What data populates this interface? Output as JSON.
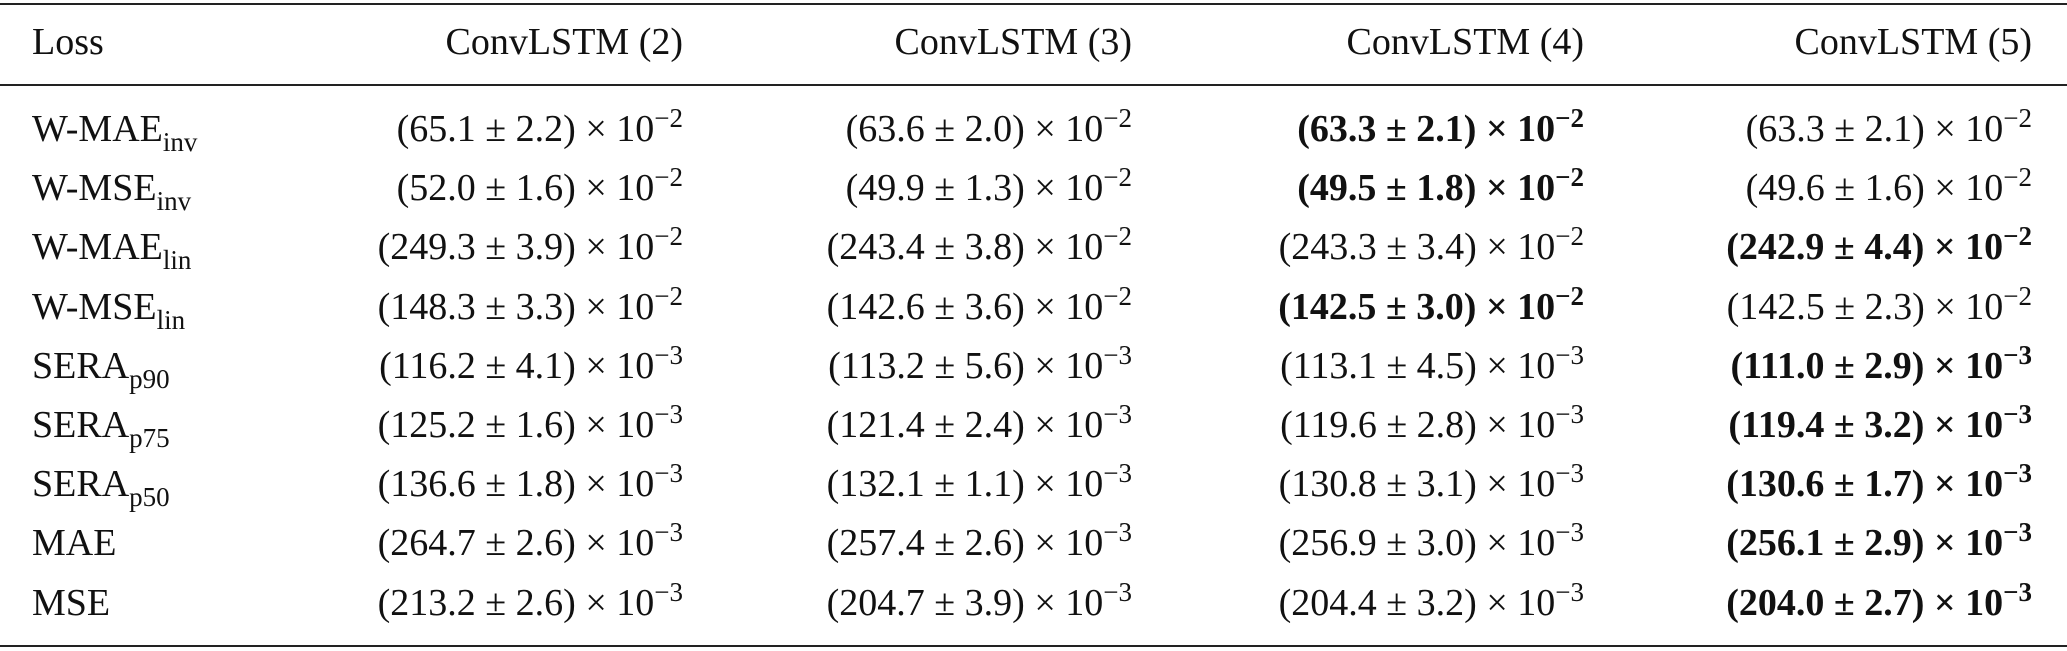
{
  "table": {
    "header": [
      "Loss",
      "ConvLSTM (2)",
      "ConvLSTM (3)",
      "ConvLSTM (4)",
      "ConvLSTM (5)"
    ],
    "rows": [
      [
        {
          "text": "W-MAE",
          "sub": "inv"
        },
        {
          "text": "(65.1 ± 2.2) × 10",
          "sup": "−2",
          "bold": false
        },
        {
          "text": "(63.6 ± 2.0) × 10",
          "sup": "−2",
          "bold": false
        },
        {
          "text": "(63.3 ± 2.1) × 10",
          "sup": "−2",
          "bold": true
        },
        {
          "text": "(63.3 ± 2.1) × 10",
          "sup": "−2",
          "bold": false
        }
      ],
      [
        {
          "text": "W-MSE",
          "sub": "inv"
        },
        {
          "text": "(52.0 ± 1.6) × 10",
          "sup": "−2",
          "bold": false
        },
        {
          "text": "(49.9 ± 1.3) × 10",
          "sup": "−2",
          "bold": false
        },
        {
          "text": "(49.5 ± 1.8) × 10",
          "sup": "−2",
          "bold": true
        },
        {
          "text": "(49.6 ± 1.6) × 10",
          "sup": "−2",
          "bold": false
        }
      ],
      [
        {
          "text": "W-MAE",
          "sub": "lin"
        },
        {
          "text": "(249.3 ± 3.9) × 10",
          "sup": "−2",
          "bold": false
        },
        {
          "text": "(243.4 ± 3.8) × 10",
          "sup": "−2",
          "bold": false
        },
        {
          "text": "(243.3 ± 3.4) × 10",
          "sup": "−2",
          "bold": false
        },
        {
          "text": "(242.9 ± 4.4) × 10",
          "sup": "−2",
          "bold": true
        }
      ],
      [
        {
          "text": "W-MSE",
          "sub": "lin"
        },
        {
          "text": "(148.3 ± 3.3) × 10",
          "sup": "−2",
          "bold": false
        },
        {
          "text": "(142.6 ± 3.6) × 10",
          "sup": "−2",
          "bold": false
        },
        {
          "text": "(142.5 ± 3.0) × 10",
          "sup": "−2",
          "bold": true
        },
        {
          "text": "(142.5 ± 2.3) × 10",
          "sup": "−2",
          "bold": false
        }
      ],
      [
        {
          "text": "SERA",
          "sub": "p90"
        },
        {
          "text": "(116.2 ± 4.1) × 10",
          "sup": "−3",
          "bold": false
        },
        {
          "text": "(113.2 ± 5.6) × 10",
          "sup": "−3",
          "bold": false
        },
        {
          "text": "(113.1 ± 4.5) × 10",
          "sup": "−3",
          "bold": false
        },
        {
          "text": "(111.0 ± 2.9) × 10",
          "sup": "−3",
          "bold": true
        }
      ],
      [
        {
          "text": "SERA",
          "sub": "p75"
        },
        {
          "text": "(125.2 ± 1.6) × 10",
          "sup": "−3",
          "bold": false
        },
        {
          "text": "(121.4 ± 2.4) × 10",
          "sup": "−3",
          "bold": false
        },
        {
          "text": "(119.6 ± 2.8) × 10",
          "sup": "−3",
          "bold": false
        },
        {
          "text": "(119.4 ± 3.2) × 10",
          "sup": "−3",
          "bold": true
        }
      ],
      [
        {
          "text": "SERA",
          "sub": "p50"
        },
        {
          "text": "(136.6 ± 1.8) × 10",
          "sup": "−3",
          "bold": false
        },
        {
          "text": "(132.1 ± 1.1) × 10",
          "sup": "−3",
          "bold": false
        },
        {
          "text": "(130.8 ± 3.1) × 10",
          "sup": "−3",
          "bold": false
        },
        {
          "text": "(130.6 ± 1.7) × 10",
          "sup": "−3",
          "bold": true
        }
      ],
      [
        {
          "text": "MAE"
        },
        {
          "text": "(264.7 ± 2.6) × 10",
          "sup": "−3",
          "bold": false
        },
        {
          "text": "(257.4 ± 2.6) × 10",
          "sup": "−3",
          "bold": false
        },
        {
          "text": "(256.9 ± 3.0) × 10",
          "sup": "−3",
          "bold": false
        },
        {
          "text": "(256.1 ± 2.9) × 10",
          "sup": "−3",
          "bold": true
        }
      ],
      [
        {
          "text": "MSE"
        },
        {
          "text": "(213.2 ± 2.6) × 10",
          "sup": "−3",
          "bold": false
        },
        {
          "text": "(204.7 ± 3.9) × 10",
          "sup": "−3",
          "bold": false
        },
        {
          "text": "(204.4 ± 3.2) × 10",
          "sup": "−3",
          "bold": false
        },
        {
          "text": "(204.0 ± 2.7) × 10",
          "sup": "−3",
          "bold": true
        }
      ]
    ]
  }
}
